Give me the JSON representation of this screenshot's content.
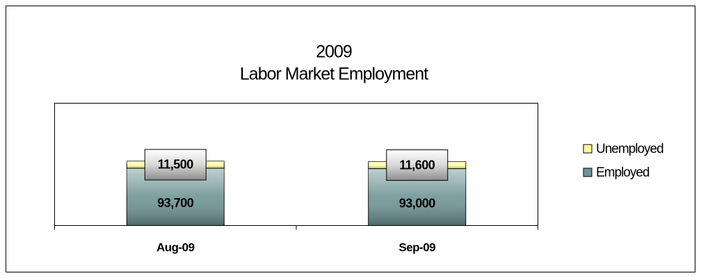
{
  "chart_data": {
    "type": "stacked-bar",
    "title": "2009",
    "subtitle": "Labor Market Employment",
    "categories": [
      "Aug-09",
      "Sep-09"
    ],
    "series": [
      {
        "name": "Employed",
        "color": "#6f9494",
        "values": [
          93700,
          93000
        ],
        "value_labels": [
          "93,700",
          "93,000"
        ]
      },
      {
        "name": "Unemployed",
        "color": "#ffff99",
        "values": [
          11500,
          11600
        ],
        "value_labels": [
          "11,500",
          "11,600"
        ]
      }
    ],
    "ylim": [
      0,
      200000
    ],
    "legend": "right"
  }
}
